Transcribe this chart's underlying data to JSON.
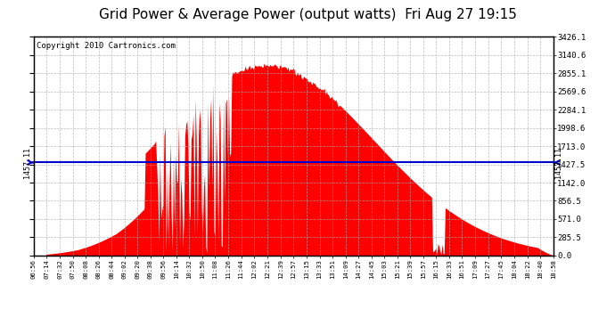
{
  "title": "Grid Power & Average Power (output watts)  Fri Aug 27 19:15",
  "copyright": "Copyright 2010 Cartronics.com",
  "avg_line_value": 1457.11,
  "avg_label": "1457.11",
  "y_max": 3426.1,
  "y_min": 0.0,
  "ytick_labels": [
    "0.0",
    "285.5",
    "571.0",
    "856.5",
    "1142.0",
    "1427.5",
    "1713.0",
    "1998.6",
    "2284.1",
    "2569.6",
    "2855.1",
    "3140.6",
    "3426.1"
  ],
  "ytick_values": [
    0.0,
    285.5,
    571.0,
    856.5,
    1142.0,
    1427.5,
    1713.0,
    1998.6,
    2284.1,
    2569.6,
    2855.1,
    3140.6,
    3426.1
  ],
  "fill_color": "#FF0000",
  "line_color": "#FF0000",
  "avg_line_color": "#0000CC",
  "background_color": "#FFFFFF",
  "plot_bg_color": "#FFFFFF",
  "grid_color": "#AAAAAA",
  "title_fontsize": 11,
  "copyright_fontsize": 6.5,
  "xtick_labels": [
    "06:56",
    "07:14",
    "07:32",
    "07:50",
    "08:08",
    "08:26",
    "08:44",
    "09:02",
    "09:20",
    "09:38",
    "09:56",
    "10:14",
    "10:32",
    "10:50",
    "11:08",
    "11:26",
    "11:44",
    "12:02",
    "12:21",
    "12:39",
    "12:57",
    "13:15",
    "13:33",
    "13:51",
    "14:09",
    "14:27",
    "14:45",
    "15:03",
    "15:21",
    "15:39",
    "15:57",
    "16:15",
    "16:33",
    "16:51",
    "17:09",
    "17:27",
    "17:45",
    "18:04",
    "18:22",
    "18:40",
    "18:58"
  ]
}
